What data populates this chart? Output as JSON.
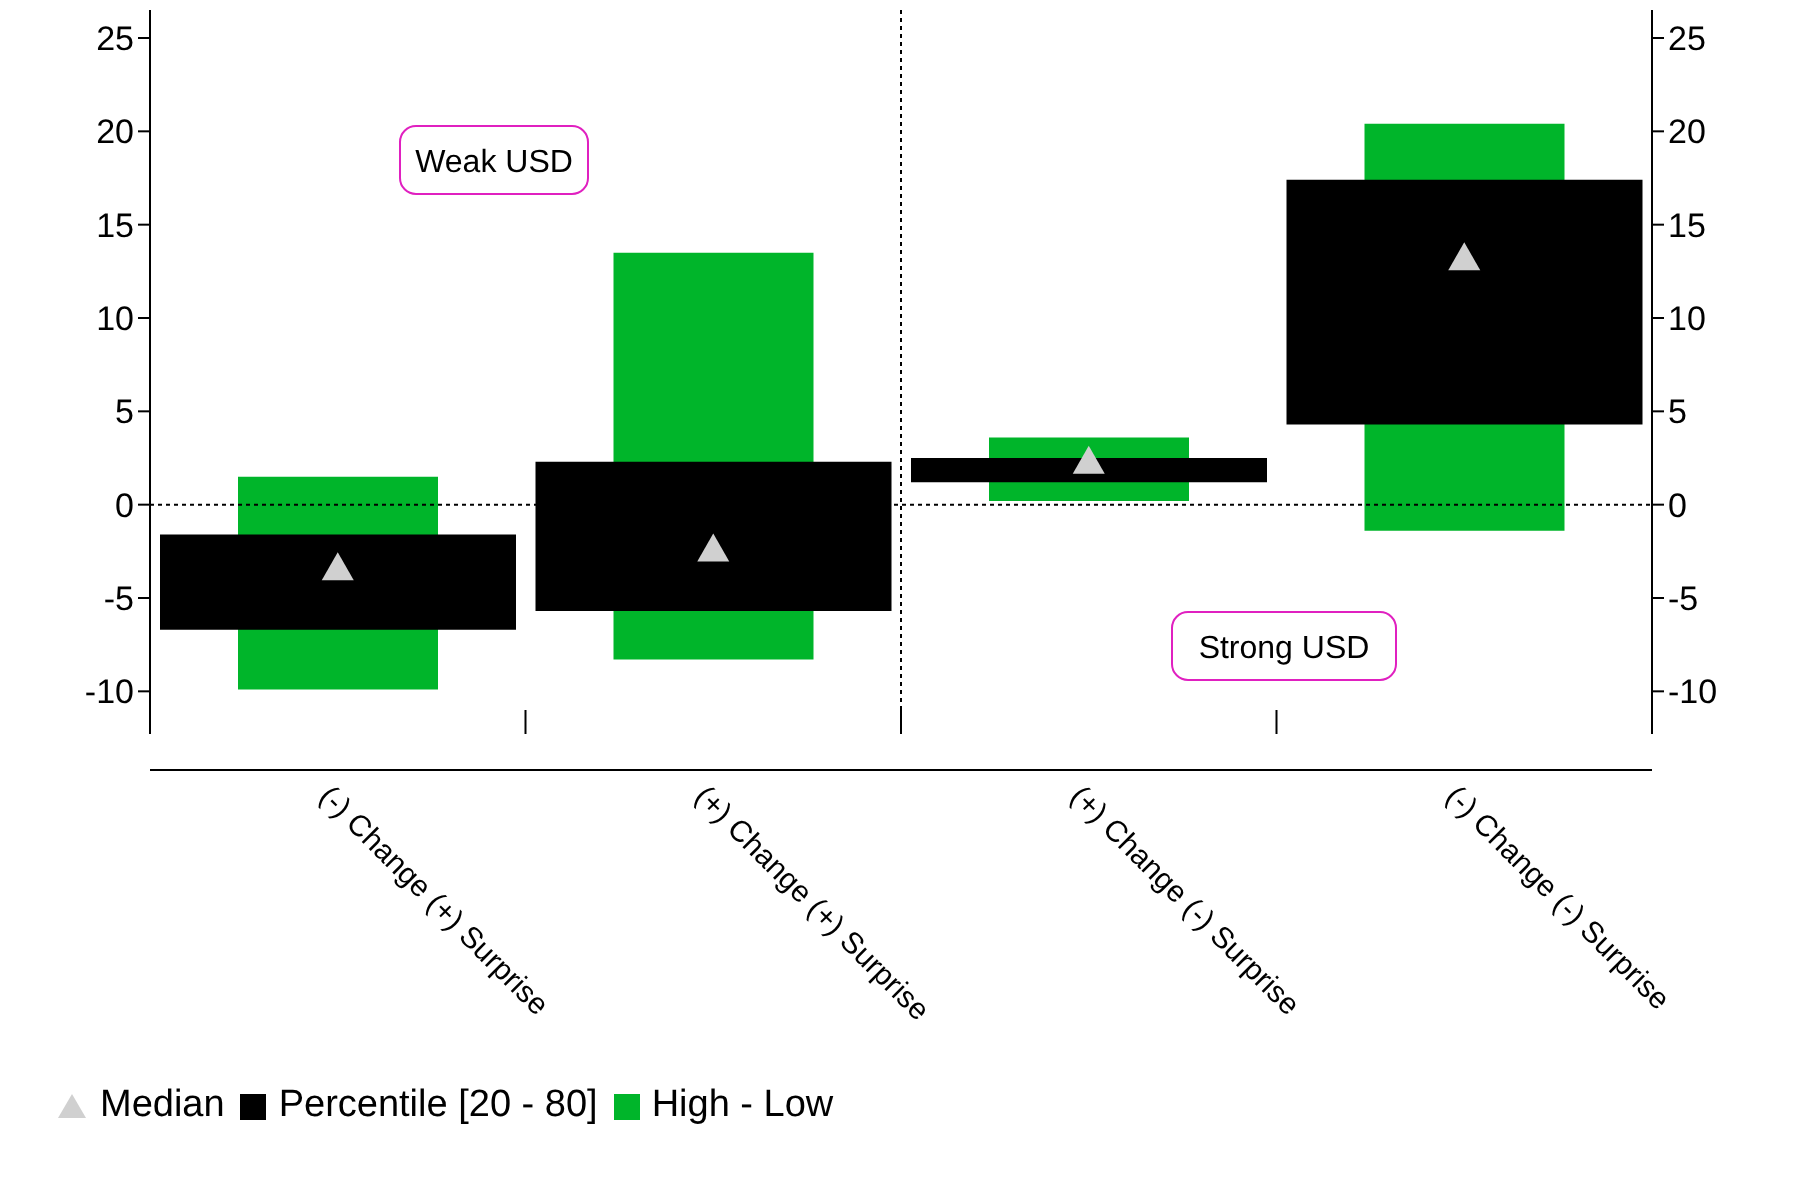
{
  "chart_data": {
    "type": "bar",
    "categories": [
      "(-) Change (+) Surprise",
      "(+) Change (+) Surprise",
      "(+) Change (-) Surprise",
      "(-) Change (-) Surprise"
    ],
    "series": [
      {
        "name": "High - Low",
        "color": "#00b52a",
        "base": [
          -9.9,
          -8.3,
          0.2,
          -1.4
        ],
        "values": [
          11.4,
          21.8,
          3.4,
          21.8
        ]
      },
      {
        "name": "Percentile [20 - 80]",
        "color": "#000000",
        "base": [
          -6.7,
          -5.7,
          1.2,
          4.3
        ],
        "values": [
          5.1,
          8.0,
          1.3,
          13.1
        ]
      },
      {
        "name": "Median",
        "type": "scatter",
        "color": "#d0d0d0",
        "marker": "triangle",
        "x": [
          "(-) Change (+) Surprise",
          "(+) Change (+) Surprise",
          "(+) Change (-) Surprise",
          "(-) Change (-) Surprise"
        ],
        "values": [
          -3.4,
          -2.4,
          2.3,
          13.2
        ]
      }
    ],
    "legend": "bottom left",
    "ylim": [
      -11,
      26.5
    ],
    "yticks": [
      -10,
      -5,
      0,
      5,
      10,
      15,
      20,
      25
    ],
    "y2lim": [
      -11,
      26.5
    ],
    "y2ticks": [
      -10,
      -5,
      0,
      5,
      10,
      15,
      20,
      25
    ],
    "ref_lines": [
      {
        "axis": "y",
        "value": 0,
        "line_style": "dotted",
        "color": "#000000"
      }
    ],
    "annotations": [
      "Weak USD",
      "Strong USD"
    ]
  }
}
